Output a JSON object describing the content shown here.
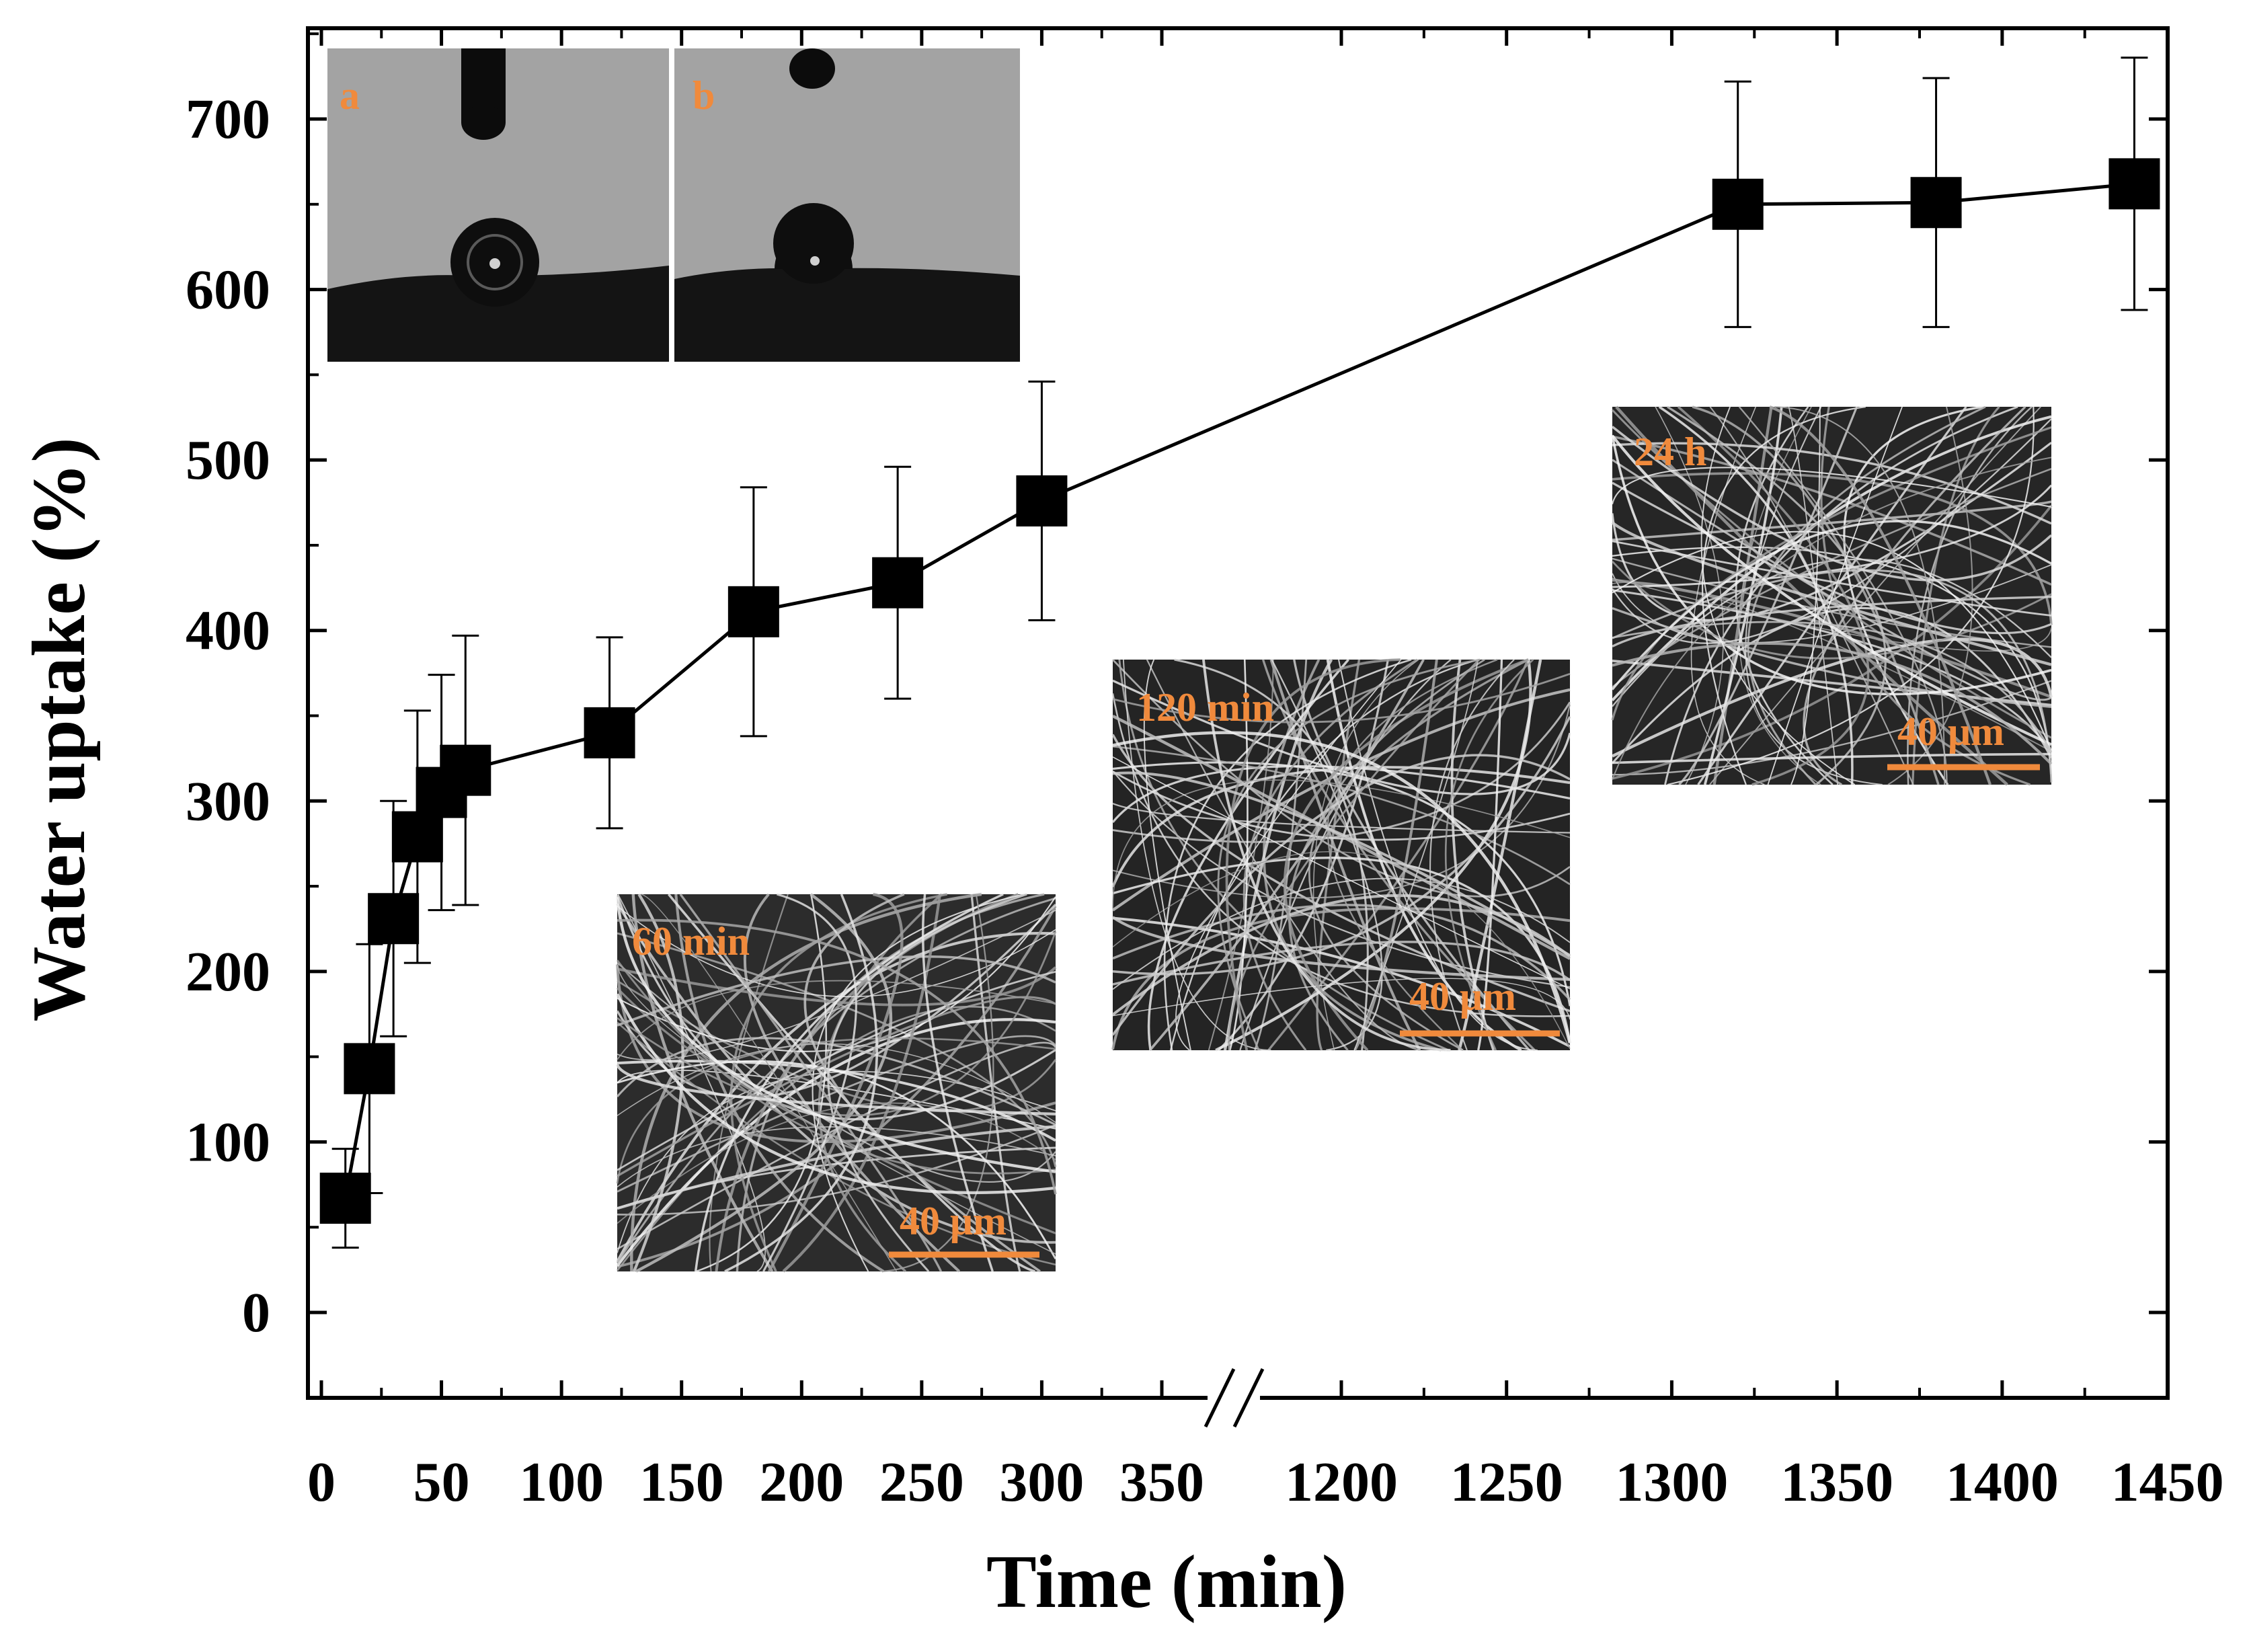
{
  "chart_data": {
    "type": "scatter",
    "xlabel": "Time (min)",
    "ylabel": "Water uptake (%)",
    "x_axis": {
      "broken": true,
      "segments": [
        {
          "range": [
            -5,
            367
          ],
          "ticks": [
            0,
            50,
            100,
            150,
            200,
            250,
            300,
            350
          ]
        },
        {
          "range": [
            1172,
            1450
          ],
          "ticks": [
            1200,
            1250,
            1300,
            1350,
            1400,
            1450
          ]
        }
      ]
    },
    "ylim": [
      -50,
      750
    ],
    "yticks": [
      0,
      100,
      200,
      300,
      400,
      500,
      600,
      700
    ],
    "grid": false,
    "series": [
      {
        "marker": "square",
        "color": "#000000",
        "points": [
          {
            "x": 10,
            "y": 67,
            "err": 29
          },
          {
            "x": 20,
            "y": 143,
            "err": 73
          },
          {
            "x": 30,
            "y": 231,
            "err": 69
          },
          {
            "x": 40,
            "y": 279,
            "err": 74
          },
          {
            "x": 50,
            "y": 305,
            "err": 69
          },
          {
            "x": 60,
            "y": 318,
            "err": 79
          },
          {
            "x": 120,
            "y": 340,
            "err": 56
          },
          {
            "x": 180,
            "y": 411,
            "err": 73
          },
          {
            "x": 240,
            "y": 428,
            "err": 68
          },
          {
            "x": 300,
            "y": 476,
            "err": 70
          },
          {
            "x": 1320,
            "y": 650,
            "err": 72
          },
          {
            "x": 1380,
            "y": 651,
            "err": 73
          },
          {
            "x": 1440,
            "y": 662,
            "err": 74
          }
        ]
      }
    ],
    "insets": {
      "contact_angle": {
        "panels": [
          "a",
          "b"
        ]
      },
      "sem": [
        {
          "label": "60 min",
          "scale_bar": "40 μm"
        },
        {
          "label": "120 min",
          "scale_bar": "40 μm"
        },
        {
          "label": "24 h",
          "scale_bar": "40 μm"
        }
      ]
    }
  }
}
